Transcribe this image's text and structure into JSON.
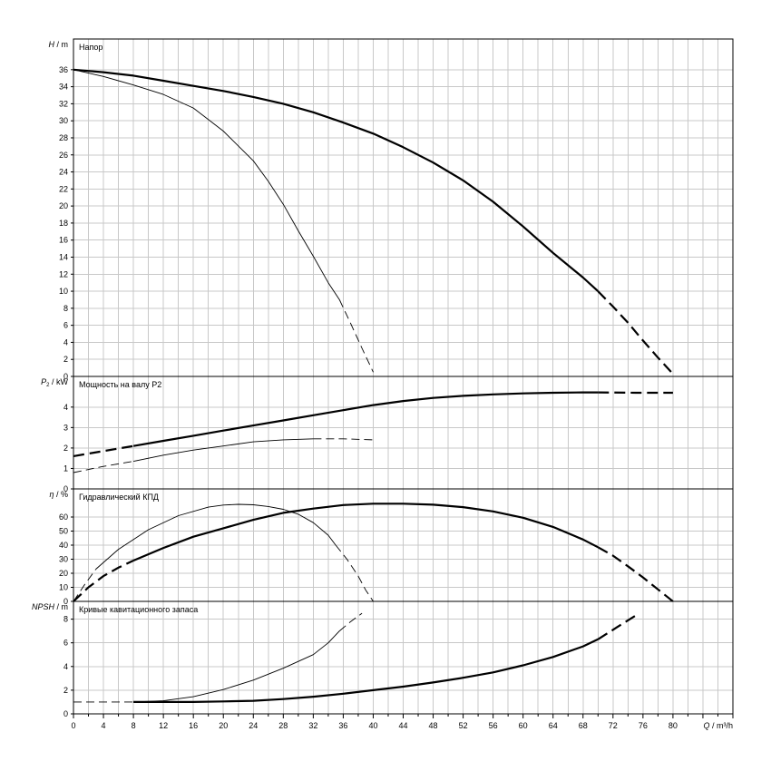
{
  "x_axis": {
    "label_italic": "Q",
    "label_unit": " / m³/h",
    "ticks": [
      0,
      4,
      8,
      12,
      16,
      20,
      24,
      28,
      32,
      36,
      40,
      44,
      48,
      52,
      56,
      60,
      64,
      68,
      72,
      76,
      80
    ],
    "range": [
      0,
      88
    ]
  },
  "colors": {
    "grid": "#c8c8c8",
    "frame": "#000000",
    "curve": "#000000"
  },
  "chart_data": [
    {
      "type": "line",
      "title": "Напор",
      "ylabel_italic": "H",
      "ylabel_unit": " / m",
      "ylim": [
        0,
        39.6
      ],
      "yticks": [
        0,
        2,
        4,
        6,
        8,
        10,
        12,
        14,
        16,
        18,
        20,
        22,
        24,
        26,
        28,
        30,
        32,
        34,
        36
      ],
      "grid": true,
      "series": [
        {
          "weight": "thick",
          "style": "solid",
          "x": [
            0,
            4,
            8,
            12,
            16,
            20,
            24,
            28,
            32,
            36,
            40,
            44,
            48,
            52,
            56,
            60,
            64,
            68,
            70
          ],
          "y": [
            36,
            35.7,
            35.3,
            34.7,
            34.1,
            33.5,
            32.8,
            32.0,
            31.0,
            29.8,
            28.5,
            26.9,
            25.1,
            23.0,
            20.5,
            17.6,
            14.5,
            11.6,
            10.0
          ]
        },
        {
          "weight": "thick",
          "style": "dashed",
          "x": [
            70,
            72,
            74,
            76,
            78,
            80
          ],
          "y": [
            10,
            8.2,
            6.3,
            4.2,
            2.2,
            0.3
          ]
        },
        {
          "weight": "thin",
          "style": "solid",
          "x": [
            0,
            4,
            8,
            12,
            16,
            20,
            24,
            26,
            28,
            30,
            32,
            34,
            35.5
          ],
          "y": [
            36,
            35.2,
            34.2,
            33.1,
            31.5,
            28.8,
            25.3,
            22.9,
            20.2,
            17.1,
            14.1,
            11.0,
            9.0
          ]
        },
        {
          "weight": "thin",
          "style": "dashed",
          "x": [
            35.5,
            37,
            38.5,
            40
          ],
          "y": [
            9.0,
            6.2,
            3.3,
            0.5
          ]
        }
      ]
    },
    {
      "type": "line",
      "title": "Мощность на валу P2",
      "ylabel_italic": "P",
      "ylabel_sub": "2",
      "ylabel_unit": " / kW",
      "ylim": [
        0,
        5.5
      ],
      "yticks": [
        0,
        1,
        2,
        3,
        4
      ],
      "grid": true,
      "series": [
        {
          "weight": "thick",
          "style": "dashed",
          "x": [
            0,
            4,
            8
          ],
          "y": [
            1.6,
            1.85,
            2.1
          ]
        },
        {
          "weight": "thick",
          "style": "solid",
          "x": [
            8,
            12,
            16,
            20,
            24,
            28,
            32,
            36,
            40,
            44,
            48,
            52,
            56,
            60,
            64,
            68,
            70
          ],
          "y": [
            2.1,
            2.35,
            2.6,
            2.85,
            3.1,
            3.35,
            3.6,
            3.85,
            4.1,
            4.3,
            4.45,
            4.55,
            4.62,
            4.67,
            4.7,
            4.72,
            4.72
          ]
        },
        {
          "weight": "thick",
          "style": "dashed",
          "x": [
            70,
            75,
            80
          ],
          "y": [
            4.72,
            4.7,
            4.7
          ]
        },
        {
          "weight": "thin",
          "style": "dashed",
          "x": [
            0,
            4,
            8
          ],
          "y": [
            0.8,
            1.1,
            1.35
          ]
        },
        {
          "weight": "thin",
          "style": "solid",
          "x": [
            8,
            12,
            16,
            20,
            24,
            28,
            32
          ],
          "y": [
            1.35,
            1.65,
            1.9,
            2.1,
            2.3,
            2.4,
            2.45
          ]
        },
        {
          "weight": "thin",
          "style": "dashed",
          "x": [
            32,
            36,
            40
          ],
          "y": [
            2.45,
            2.45,
            2.4
          ]
        }
      ]
    },
    {
      "type": "line",
      "title": "Гидравлический КПД",
      "ylabel_italic": "η",
      "ylabel_unit": " / %",
      "ylim": [
        0,
        80
      ],
      "yticks": [
        0,
        10,
        20,
        30,
        40,
        50,
        60
      ],
      "grid": true,
      "series": [
        {
          "weight": "thick",
          "style": "dashed",
          "x": [
            0,
            2,
            4,
            6,
            8
          ],
          "y": [
            0,
            10,
            18,
            24,
            29
          ]
        },
        {
          "weight": "thick",
          "style": "solid",
          "x": [
            8,
            12,
            16,
            20,
            24,
            28,
            32,
            36,
            40,
            44,
            48,
            52,
            56,
            60,
            64,
            68,
            70
          ],
          "y": [
            29,
            38,
            46,
            52,
            58,
            63,
            66,
            68.5,
            69.5,
            69.5,
            68.8,
            67.0,
            64.0,
            59.5,
            53.0,
            44.0,
            38.5
          ]
        },
        {
          "weight": "thick",
          "style": "dashed",
          "x": [
            70,
            72,
            74,
            76,
            78,
            80
          ],
          "y": [
            38.5,
            32.5,
            25.0,
            17.0,
            8.5,
            0
          ]
        },
        {
          "weight": "thin",
          "style": "dashed",
          "x": [
            0,
            1.5,
            3
          ],
          "y": [
            0,
            12,
            23
          ]
        },
        {
          "weight": "thin",
          "style": "solid",
          "x": [
            3,
            6,
            10,
            14,
            18,
            20,
            22,
            24,
            26,
            28,
            30,
            32,
            34,
            35
          ],
          "y": [
            23,
            37,
            51,
            61,
            67,
            68.5,
            69,
            68.7,
            67.5,
            65.5,
            62,
            56,
            47,
            40
          ]
        },
        {
          "weight": "thin",
          "style": "dashed",
          "x": [
            35,
            36.5,
            38,
            39,
            40
          ],
          "y": [
            40,
            30,
            18,
            8,
            0
          ]
        }
      ]
    },
    {
      "type": "line",
      "title": "Кривые кавитационного запаса",
      "ylabel_italic": "NPSH",
      "ylabel_unit": " / m",
      "ylim": [
        0,
        9.5
      ],
      "yticks": [
        0,
        2,
        4,
        6,
        8
      ],
      "grid": true,
      "series": [
        {
          "weight": "thin",
          "style": "dashed",
          "x": [
            0,
            4,
            8
          ],
          "y": [
            1.0,
            1.0,
            1.0
          ]
        },
        {
          "weight": "thick",
          "style": "solid",
          "x": [
            8,
            12,
            16,
            20,
            24,
            28,
            32,
            36,
            40,
            44,
            48,
            52,
            56,
            60,
            64,
            68,
            70
          ],
          "y": [
            1.0,
            1.0,
            1.0,
            1.05,
            1.1,
            1.25,
            1.45,
            1.7,
            2.0,
            2.3,
            2.65,
            3.05,
            3.5,
            4.1,
            4.8,
            5.7,
            6.3
          ]
        },
        {
          "weight": "thick",
          "style": "dashed",
          "x": [
            70,
            72.5,
            75
          ],
          "y": [
            6.3,
            7.3,
            8.3
          ]
        },
        {
          "weight": "thin",
          "style": "solid",
          "x": [
            8,
            12,
            16,
            20,
            24,
            28,
            32,
            34,
            35.5
          ],
          "y": [
            1.0,
            1.1,
            1.45,
            2.05,
            2.85,
            3.85,
            5.0,
            6.0,
            7.0
          ]
        },
        {
          "weight": "thin",
          "style": "dashed",
          "x": [
            35.5,
            37,
            38.5
          ],
          "y": [
            7.0,
            7.8,
            8.5
          ]
        }
      ]
    }
  ]
}
